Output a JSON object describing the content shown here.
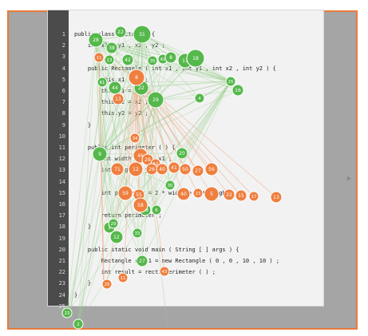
{
  "editor": {
    "line_numbers": [
      "1",
      "2",
      "3",
      "4",
      "5",
      "6",
      "7",
      "8",
      "9",
      "10",
      "11",
      "12",
      "13",
      "14",
      "15",
      "16",
      "17",
      "18",
      "19",
      "20",
      "21",
      "22",
      "23",
      "24",
      "25"
    ],
    "code_lines": [
      {
        "text": "public class Rectangle {"
      },
      {
        "text": "    int x1 , y1 , x2 , y2 ;"
      },
      {
        "text": ""
      },
      {
        "text": "    public Rectangle ( int x1 , int y1 , int x2 , int y2 ) {"
      },
      {
        "text": "        this.x1 = x1 ;"
      },
      {
        "text": "        this.y1 = y1 ;"
      },
      {
        "text": "        this.x2 = x2 ;"
      },
      {
        "text": "        this.y2 = y2 ;"
      },
      {
        "text": "    }"
      },
      {
        "text": ""
      },
      {
        "text": "    public int perimeter ( ) {"
      },
      {
        "text": "        int width = x2 - x1 ;"
      },
      {
        "text": "        int height = y2 - y1 ;"
      },
      {
        "text": ""
      },
      {
        "text": "        int perimeter = 2 * width + 2 * height ;"
      },
      {
        "text": ""
      },
      {
        "text": "        return perimeter ;"
      },
      {
        "text": "    }"
      },
      {
        "text": ""
      },
      {
        "text": "    public static void main ( String [ ] args ) {"
      },
      {
        "text": "        Rectangle rect1 = new Rectangle ( 0 , 0 , 10 , 10 ) ;"
      },
      {
        "text": "        int result = rect1.perimeter ( ) ;"
      },
      {
        "text": "    }"
      },
      {
        "text": "}"
      },
      {
        "text": ""
      }
    ]
  },
  "nodes_label_green": [
    "28",
    "38",
    "22",
    "31",
    "13",
    "42",
    "35",
    "41",
    "8",
    "11",
    "18",
    "61",
    "44",
    "22",
    "29",
    "4",
    "25",
    "16",
    "9",
    "20",
    "30",
    "27",
    "33",
    "1",
    "12",
    "18",
    "6",
    "23",
    "2",
    "29"
  ],
  "nodes_label_orange": [
    "11",
    "8",
    "13",
    "34",
    "46",
    "29",
    "52",
    "71",
    "12",
    "26",
    "40",
    "41",
    "50",
    "27",
    "56",
    "59",
    "55",
    "58",
    "40",
    "23",
    "5",
    "22",
    "15",
    "17",
    "13",
    "25",
    "43"
  ],
  "colors": {
    "green": "#55b84b",
    "orange": "#ef7f3f",
    "edge_green": "#9bd08f",
    "edge_orange": "#f1a17a",
    "frame": "#ea7a3a"
  },
  "icons": {
    "cursor": "cursor-arrow-icon"
  }
}
